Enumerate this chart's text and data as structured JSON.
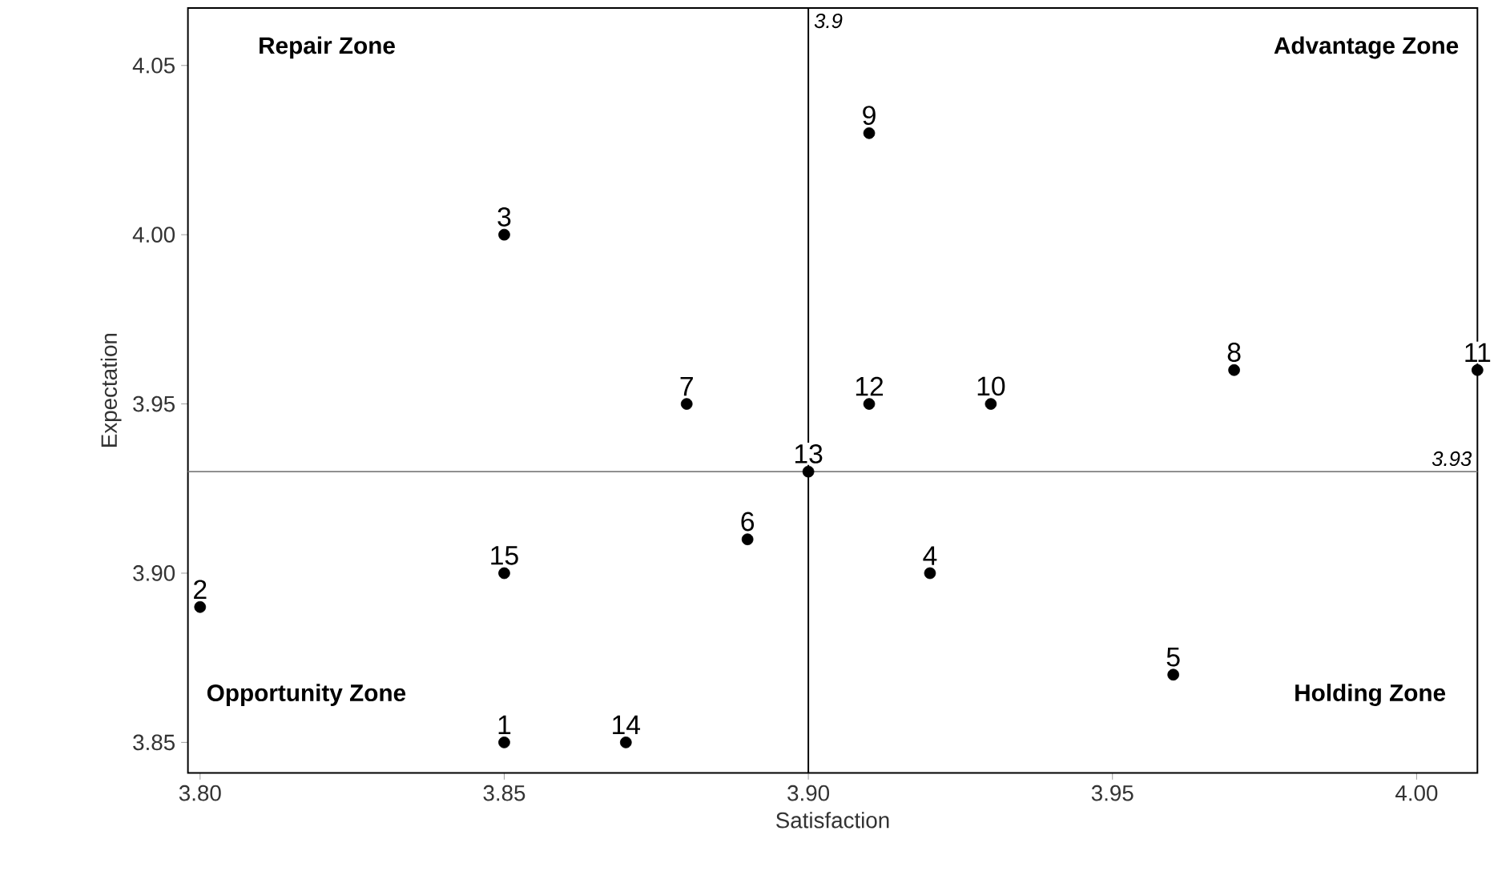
{
  "chart_data": {
    "type": "scatter",
    "xlabel": "Satisfaction",
    "ylabel": "Expectation",
    "x": [
      3.85,
      3.8,
      3.85,
      3.92,
      3.96,
      3.89,
      3.88,
      3.97,
      3.91,
      3.93,
      4.01,
      3.91,
      3.9,
      3.87,
      3.85
    ],
    "values": [
      3.85,
      3.89,
      4.0,
      3.9,
      3.87,
      3.91,
      3.95,
      3.96,
      4.03,
      3.95,
      3.96,
      3.95,
      3.93,
      3.85,
      3.9
    ],
    "color": "#000000",
    "marker": "circle",
    "xlim": [
      3.798,
      4.01
    ],
    "ylim": [
      3.841,
      4.067
    ],
    "xticks": [
      {
        "value": 3.8,
        "label": "3.80"
      },
      3.85,
      {
        "value": 3.9,
        "label": "3.90"
      },
      3.95,
      {
        "value": 4.0,
        "label": "4.00"
      }
    ],
    "yticks": [
      3.85,
      {
        "value": 3.9,
        "label": "3.90"
      },
      3.95,
      {
        "value": 4.0,
        "label": "4.00"
      },
      4.05
    ],
    "ref_lines": [
      {
        "axis": "x",
        "value": 3.9,
        "label": "3.9",
        "color": "#000000"
      },
      {
        "axis": "y",
        "value": 3.93,
        "label": "3.93",
        "color": "#808080"
      }
    ],
    "annotations": [
      "Repair Zone",
      "Advantage Zone",
      "Opportunity Zone",
      "Holding Zone",
      {
        "text": "1",
        "x": 3.85,
        "y": 3.85
      },
      {
        "text": "2",
        "x": 3.8,
        "y": 3.89
      },
      {
        "text": "3",
        "x": 3.85,
        "y": 4.0
      },
      {
        "text": "4",
        "x": 3.92,
        "y": 3.9
      },
      {
        "text": "5",
        "x": 3.96,
        "y": 3.87
      },
      {
        "text": "6",
        "x": 3.89,
        "y": 3.91
      },
      {
        "text": "7",
        "x": 3.88,
        "y": 3.95
      },
      {
        "text": "8",
        "x": 3.97,
        "y": 3.96
      },
      {
        "text": "9",
        "x": 3.91,
        "y": 4.03
      },
      {
        "text": "10",
        "x": 3.93,
        "y": 3.95
      },
      {
        "text": "11",
        "x": 4.01,
        "y": 3.96
      },
      {
        "text": "12",
        "x": 3.91,
        "y": 3.95
      },
      {
        "text": "13",
        "x": 3.9,
        "y": 3.93
      },
      {
        "text": "14",
        "x": 3.87,
        "y": 3.85
      },
      {
        "text": "15",
        "x": 3.85,
        "y": 3.9
      }
    ],
    "grid": false
  }
}
